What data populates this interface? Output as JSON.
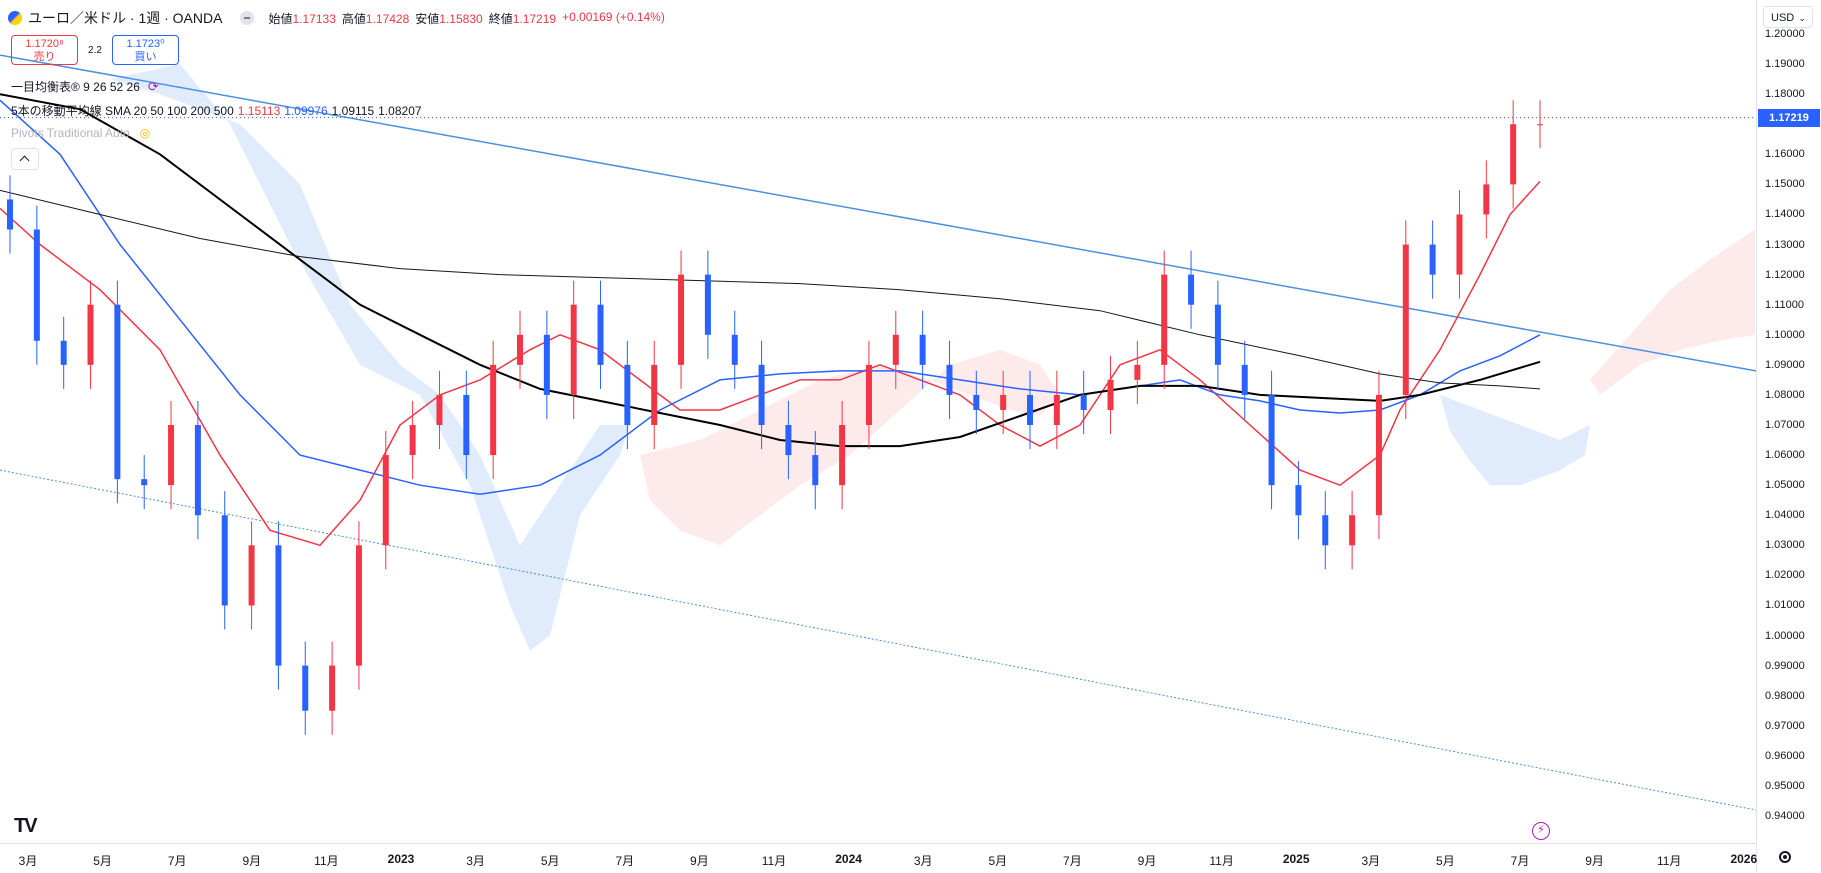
{
  "header": {
    "symbol_title": "ユーロ／米ドル · 1週 · OANDA",
    "open_label": "始値",
    "open_value": "1.17133",
    "high_label": "高値",
    "high_value": "1.17428",
    "low_label": "安値",
    "low_value": "1.15830",
    "close_label": "終値",
    "close_value": "1.17219",
    "change": "+0.00169 (+0.14%)"
  },
  "trade": {
    "sell_price": "1.1720⁸",
    "sell_label": "売り",
    "spread": "2.2",
    "buy_price": "1.1723⁰",
    "buy_label": "買い"
  },
  "indicators": {
    "ichimoku": "一目均衡表® 9 26 52 26",
    "sma_label": "5本の移動平均線 SMA 20 50 100 200 500",
    "sma_values": [
      "1.15113",
      "1.09976",
      "1.09115",
      "1.08207"
    ],
    "pivots": "Pivots Traditional Auto"
  },
  "price_axis": {
    "currency": "USD",
    "last_price": "1.17219",
    "ticks": [
      "1.20000",
      "1.19000",
      "1.18000",
      "1.17000",
      "1.16000",
      "1.15000",
      "1.14000",
      "1.13000",
      "1.12000",
      "1.11000",
      "1.10000",
      "1.09000",
      "1.08000",
      "1.07000",
      "1.06000",
      "1.05000",
      "1.04000",
      "1.03000",
      "1.02000",
      "1.01000",
      "1.00000",
      "0.99000",
      "0.98000",
      "0.97000",
      "0.96000",
      "0.95000",
      "0.94000"
    ]
  },
  "time_axis": {
    "labels": [
      {
        "text": "3月",
        "year": false
      },
      {
        "text": "5月",
        "year": false
      },
      {
        "text": "7月",
        "year": false
      },
      {
        "text": "9月",
        "year": false
      },
      {
        "text": "11月",
        "year": false
      },
      {
        "text": "2023",
        "year": true
      },
      {
        "text": "3月",
        "year": false
      },
      {
        "text": "5月",
        "year": false
      },
      {
        "text": "7月",
        "year": false
      },
      {
        "text": "9月",
        "year": false
      },
      {
        "text": "11月",
        "year": false
      },
      {
        "text": "2024",
        "year": true
      },
      {
        "text": "3月",
        "year": false
      },
      {
        "text": "5月",
        "year": false
      },
      {
        "text": "7月",
        "year": false
      },
      {
        "text": "9月",
        "year": false
      },
      {
        "text": "11月",
        "year": false
      },
      {
        "text": "2025",
        "year": true
      },
      {
        "text": "3月",
        "year": false
      },
      {
        "text": "5月",
        "year": false
      },
      {
        "text": "7月",
        "year": false
      },
      {
        "text": "9月",
        "year": false
      },
      {
        "text": "11月",
        "year": false
      },
      {
        "text": "2026",
        "year": true
      }
    ]
  },
  "colors": {
    "up": "#f23645",
    "down": "#2962ff",
    "sma20": "#f23645",
    "sma50": "#2962ff",
    "sma100": "#000000",
    "sma200": "#131722",
    "trendline": "#4a90e2",
    "cloud_bull": "#dbe9fb",
    "cloud_bear": "#fde6e8"
  },
  "chart_data": {
    "type": "line",
    "title": "ユーロ／米ドル · 1週 · OANDA",
    "ylim": [
      0.94,
      1.2
    ],
    "series": [
      {
        "name": "Price",
        "values": [
          1.135,
          1.098,
          1.09,
          1.11,
          1.052,
          1.05,
          1.07,
          1.04,
          1.01,
          1.03,
          0.99,
          0.975,
          0.99,
          1.03,
          1.06,
          1.07,
          1.08,
          1.06,
          1.09,
          1.1,
          1.08,
          1.11,
          1.09,
          1.07,
          1.09,
          1.12,
          1.1,
          1.09,
          1.07,
          1.06,
          1.05,
          1.07,
          1.09,
          1.1,
          1.09,
          1.08,
          1.075,
          1.08,
          1.07,
          1.08,
          1.075,
          1.085,
          1.09,
          1.12,
          1.11,
          1.09,
          1.08,
          1.05,
          1.04,
          1.03,
          1.04,
          1.08,
          1.13,
          1.12,
          1.14,
          1.15,
          1.17,
          1.17
        ]
      },
      {
        "name": "SMA 20",
        "values": [
          1.15113
        ]
      },
      {
        "name": "SMA 50",
        "values": [
          1.09976
        ]
      },
      {
        "name": "SMA 100",
        "values": [
          1.09115
        ]
      },
      {
        "name": "SMA 200",
        "values": [
          1.08207
        ]
      }
    ]
  }
}
